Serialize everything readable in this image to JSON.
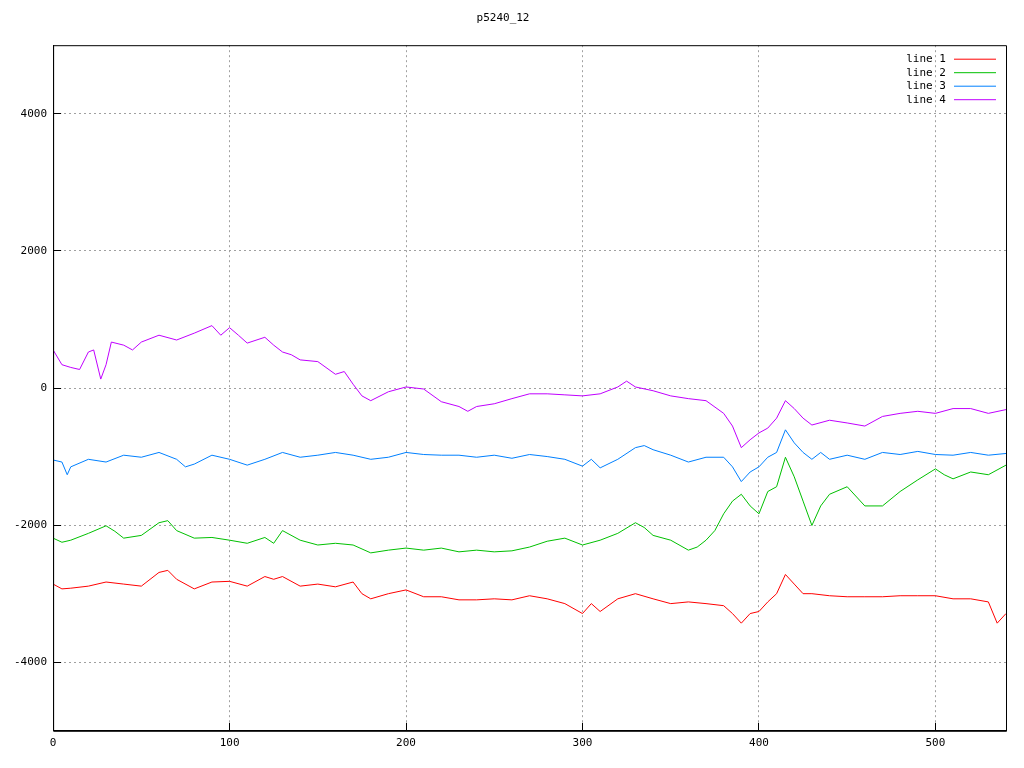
{
  "chart_data": {
    "type": "line",
    "title": "p5240_12",
    "xlim": [
      0,
      540
    ],
    "ylim": [
      -5000,
      5000
    ],
    "xticks": [
      0,
      100,
      200,
      300,
      400,
      500
    ],
    "yticks": [
      -4000,
      -2000,
      0,
      2000,
      4000
    ],
    "grid": true,
    "legend": "top right",
    "series": [
      {
        "name": "line 1",
        "color": "#ff0000",
        "x": [
          0,
          5,
          10,
          20,
          30,
          40,
          50,
          60,
          65,
          70,
          80,
          90,
          100,
          110,
          120,
          125,
          130,
          140,
          150,
          160,
          170,
          175,
          180,
          190,
          200,
          210,
          220,
          230,
          240,
          250,
          260,
          270,
          280,
          290,
          300,
          305,
          310,
          320,
          330,
          340,
          350,
          360,
          370,
          380,
          385,
          390,
          395,
          400,
          405,
          410,
          415,
          420,
          425,
          430,
          440,
          450,
          460,
          470,
          480,
          490,
          500,
          510,
          520,
          530,
          535,
          540
        ],
        "values": [
          -2860,
          -2930,
          -2920,
          -2890,
          -2830,
          -2860,
          -2890,
          -2690,
          -2660,
          -2790,
          -2930,
          -2830,
          -2820,
          -2890,
          -2750,
          -2790,
          -2750,
          -2890,
          -2860,
          -2900,
          -2830,
          -3000,
          -3075,
          -3000,
          -2945,
          -3045,
          -3045,
          -3090,
          -3090,
          -3075,
          -3090,
          -3030,
          -3075,
          -3145,
          -3290,
          -3145,
          -3260,
          -3075,
          -3000,
          -3075,
          -3145,
          -3120,
          -3145,
          -3175,
          -3290,
          -3430,
          -3290,
          -3260,
          -3120,
          -3000,
          -2720,
          -2860,
          -3000,
          -3000,
          -3030,
          -3045,
          -3045,
          -3045,
          -3030,
          -3030,
          -3030,
          -3075,
          -3075,
          -3120,
          -3430,
          -3290
        ]
      },
      {
        "name": "line 2",
        "color": "#00c000",
        "x": [
          0,
          5,
          10,
          20,
          30,
          35,
          40,
          50,
          60,
          65,
          70,
          80,
          90,
          100,
          110,
          120,
          125,
          130,
          140,
          150,
          160,
          170,
          180,
          190,
          200,
          210,
          220,
          230,
          240,
          250,
          260,
          270,
          280,
          290,
          300,
          310,
          320,
          330,
          335,
          340,
          350,
          360,
          365,
          370,
          375,
          380,
          385,
          390,
          395,
          400,
          405,
          410,
          415,
          420,
          425,
          430,
          435,
          440,
          450,
          460,
          470,
          480,
          490,
          500,
          505,
          510,
          520,
          530,
          540
        ],
        "values": [
          -2190,
          -2250,
          -2220,
          -2120,
          -2010,
          -2090,
          -2190,
          -2150,
          -1965,
          -1935,
          -2080,
          -2190,
          -2180,
          -2220,
          -2265,
          -2180,
          -2265,
          -2080,
          -2220,
          -2290,
          -2265,
          -2290,
          -2405,
          -2365,
          -2335,
          -2365,
          -2335,
          -2390,
          -2365,
          -2390,
          -2375,
          -2320,
          -2235,
          -2190,
          -2290,
          -2220,
          -2120,
          -1965,
          -2035,
          -2150,
          -2220,
          -2365,
          -2320,
          -2220,
          -2080,
          -1835,
          -1650,
          -1550,
          -1720,
          -1835,
          -1510,
          -1440,
          -1010,
          -1295,
          -1650,
          -2005,
          -1720,
          -1550,
          -1440,
          -1720,
          -1720,
          -1510,
          -1340,
          -1180,
          -1265,
          -1325,
          -1225,
          -1265,
          -1125
        ]
      },
      {
        "name": "line 3",
        "color": "#0080ff",
        "x": [
          0,
          5,
          8,
          10,
          20,
          30,
          40,
          50,
          60,
          70,
          75,
          80,
          90,
          100,
          110,
          120,
          130,
          140,
          150,
          160,
          170,
          180,
          190,
          200,
          210,
          220,
          230,
          240,
          250,
          260,
          270,
          280,
          290,
          300,
          305,
          310,
          320,
          330,
          335,
          340,
          350,
          360,
          370,
          380,
          385,
          390,
          395,
          400,
          405,
          410,
          415,
          420,
          425,
          430,
          435,
          440,
          450,
          460,
          470,
          480,
          490,
          500,
          510,
          520,
          530,
          540
        ],
        "values": [
          -1050,
          -1080,
          -1265,
          -1150,
          -1040,
          -1080,
          -980,
          -1010,
          -940,
          -1040,
          -1150,
          -1110,
          -980,
          -1040,
          -1125,
          -1040,
          -940,
          -1010,
          -980,
          -940,
          -980,
          -1040,
          -1010,
          -940,
          -970,
          -980,
          -980,
          -1010,
          -980,
          -1025,
          -970,
          -1000,
          -1040,
          -1140,
          -1040,
          -1165,
          -1040,
          -870,
          -840,
          -900,
          -980,
          -1080,
          -1010,
          -1010,
          -1150,
          -1365,
          -1225,
          -1150,
          -1010,
          -940,
          -610,
          -800,
          -940,
          -1040,
          -940,
          -1040,
          -980,
          -1040,
          -940,
          -970,
          -925,
          -970,
          -980,
          -940,
          -980,
          -955
        ]
      },
      {
        "name": "line 4",
        "color": "#c000ff",
        "x": [
          0,
          5,
          10,
          15,
          20,
          23,
          27,
          30,
          33,
          40,
          45,
          50,
          60,
          70,
          80,
          90,
          95,
          100,
          105,
          110,
          120,
          125,
          130,
          135,
          140,
          150,
          160,
          165,
          170,
          175,
          180,
          190,
          200,
          210,
          220,
          230,
          235,
          240,
          250,
          260,
          270,
          280,
          290,
          300,
          310,
          320,
          325,
          330,
          340,
          350,
          360,
          370,
          380,
          385,
          390,
          395,
          400,
          405,
          410,
          415,
          420,
          425,
          430,
          440,
          450,
          460,
          470,
          480,
          490,
          500,
          510,
          520,
          530,
          540
        ],
        "values": [
          555,
          340,
          300,
          270,
          525,
          555,
          130,
          340,
          670,
          625,
          555,
          670,
          770,
          700,
          800,
          910,
          770,
          880,
          770,
          655,
          740,
          625,
          525,
          485,
          410,
          385,
          200,
          240,
          55,
          -115,
          -185,
          -55,
          15,
          -15,
          -200,
          -270,
          -340,
          -270,
          -230,
          -155,
          -85,
          -85,
          -100,
          -115,
          -85,
          15,
          100,
          15,
          -40,
          -115,
          -155,
          -185,
          -370,
          -555,
          -870,
          -755,
          -655,
          -585,
          -440,
          -185,
          -300,
          -440,
          -540,
          -470,
          -510,
          -555,
          -415,
          -370,
          -340,
          -370,
          -300,
          -300,
          -370,
          -315
        ]
      }
    ]
  }
}
